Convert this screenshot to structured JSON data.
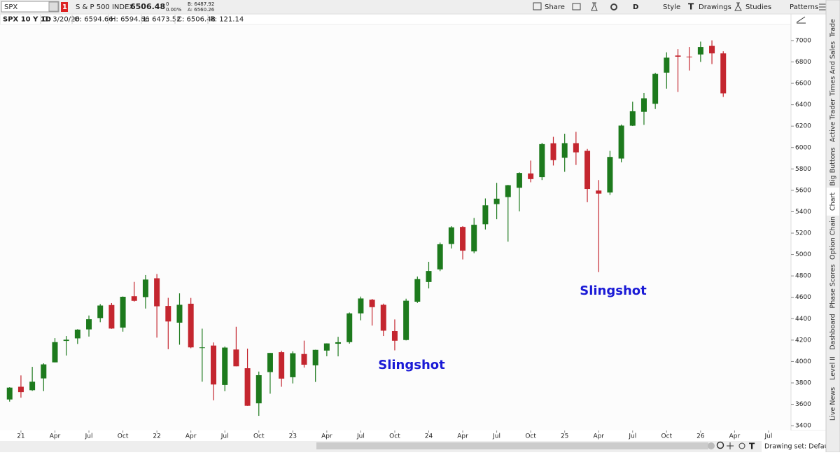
{
  "toolbar": {
    "symbol": "SPX",
    "alert_count": "1",
    "description": "S & P 500 INDEX",
    "last": "6506.48",
    "change": "0",
    "change_pct": "0.00%",
    "bid": "B: 6487.92",
    "ask": "A: 6560.26",
    "share": "Share",
    "period": "D",
    "style": "Style",
    "drawings": "Drawings",
    "studies": "Studies",
    "patterns": "Patterns"
  },
  "info_bar": [
    "SPX 10 Y 1D",
    "D: 3/20/26",
    "O: 6594.66",
    "H: 6594.66",
    "L: 6473.52",
    "C: 6506.48",
    "R: 121.14"
  ],
  "chart_data": {
    "type": "candlestick",
    "up_color": "#1d7a1d",
    "down_color": "#c4262f",
    "open": [
      3645,
      3764,
      3732,
      3842,
      3992,
      4192,
      4216,
      4300,
      4406,
      4528,
      4317,
      4610,
      4602,
      4778,
      4519,
      4363,
      4540,
      4131,
      4149,
      3781,
      4112,
      3937,
      3609,
      3901,
      4087,
      3853,
      4070,
      3964,
      4102,
      4166,
      4181,
      4450,
      4578,
      4530,
      4284,
      4201,
      4559,
      4743,
      4861,
      5098,
      5258,
      5029,
      5283,
      5471,
      5537,
      5624,
      5758,
      5723,
      6040,
      5904,
      6041,
      5969,
      5598,
      5580,
      5897,
      6204,
      6334,
      6409,
      6700,
      6860,
      6850,
      6870,
      6950,
      6880
    ],
    "high": [
      3760,
      3870,
      3950,
      3983,
      4218,
      4238,
      4302,
      4430,
      4537,
      4546,
      4608,
      4744,
      4808,
      4818,
      4595,
      4637,
      4594,
      4307,
      4178,
      4140,
      4325,
      4120,
      3906,
      4080,
      4101,
      4095,
      4195,
      4110,
      4170,
      4231,
      4458,
      4607,
      4585,
      4541,
      4393,
      4587,
      4794,
      4932,
      5112,
      5265,
      5265,
      5342,
      5524,
      5670,
      5651,
      5768,
      5878,
      6044,
      6100,
      6129,
      6147,
      5987,
      5696,
      5969,
      6215,
      6428,
      6509,
      6699,
      6890,
      6920,
      6940,
      6990,
      7002,
      6900
    ],
    "low": [
      3625,
      3662,
      3725,
      3723,
      3992,
      4056,
      4164,
      4233,
      4367,
      4305,
      4279,
      4560,
      4495,
      4223,
      4115,
      4157,
      4124,
      3811,
      3637,
      3722,
      3955,
      3585,
      3492,
      3699,
      3764,
      3795,
      3943,
      3809,
      4049,
      4048,
      4167,
      4385,
      4336,
      4238,
      4104,
      4197,
      4547,
      4683,
      4845,
      5056,
      4954,
      5012,
      5234,
      5330,
      5120,
      5403,
      5675,
      5696,
      5832,
      5773,
      5837,
      5489,
      4835,
      5557,
      5862,
      6201,
      6212,
      6360,
      6550,
      6520,
      6720,
      6800,
      6780,
      6473
    ],
    "close": [
      3756,
      3714,
      3811,
      3973,
      4181,
      4204,
      4298,
      4395,
      4523,
      4308,
      4605,
      4567,
      4766,
      4516,
      4374,
      4530,
      4132,
      4132,
      3785,
      4130,
      3955,
      3586,
      3872,
      4080,
      3840,
      4077,
      3970,
      4109,
      4169,
      4180,
      4450,
      4589,
      4508,
      4288,
      4194,
      4568,
      4770,
      4846,
      5096,
      5254,
      5036,
      5278,
      5460,
      5522,
      5648,
      5762,
      5705,
      6032,
      5882,
      6041,
      5955,
      5612,
      5569,
      5912,
      6205,
      6339,
      6460,
      6688,
      6840,
      6849,
      6845,
      6940,
      6880,
      6506
    ],
    "xlim": [
      -0.85,
      68.98
    ],
    "xticks": [
      {
        "value": 1,
        "label": "21"
      },
      {
        "value": 4,
        "label": "Apr"
      },
      {
        "value": 7,
        "label": "Jul"
      },
      {
        "value": 10,
        "label": "Oct"
      },
      {
        "value": 13,
        "label": "22"
      },
      {
        "value": 16,
        "label": "Apr"
      },
      {
        "value": 19,
        "label": "Jul"
      },
      {
        "value": 22,
        "label": "Oct"
      },
      {
        "value": 25,
        "label": "23"
      },
      {
        "value": 28,
        "label": "Apr"
      },
      {
        "value": 31,
        "label": "Jul"
      },
      {
        "value": 34,
        "label": "Oct"
      },
      {
        "value": 37,
        "label": "24"
      },
      {
        "value": 40,
        "label": "Apr"
      },
      {
        "value": 43,
        "label": "Jul"
      },
      {
        "value": 46,
        "label": "Oct"
      },
      {
        "value": 49,
        "label": "25"
      },
      {
        "value": 52,
        "label": "Apr"
      },
      {
        "value": 55,
        "label": "Jul"
      },
      {
        "value": 58,
        "label": "Oct"
      },
      {
        "value": 61,
        "label": "26"
      },
      {
        "value": 64,
        "label": "Apr"
      },
      {
        "value": 67,
        "label": "Jul"
      }
    ],
    "ylim": [
      3355,
      7150
    ],
    "yticks": [
      3400,
      3600,
      3800,
      4000,
      4200,
      4400,
      4600,
      4800,
      5000,
      5200,
      5400,
      5600,
      5800,
      6000,
      6200,
      6400,
      6600,
      6800,
      7000
    ],
    "annotations": [
      "Slingshot",
      "Slingshot"
    ],
    "annotation_color": "#1a1ad6"
  },
  "side_tabs": [
    "Trade",
    "Times And Sales",
    "Active Trader",
    "Big Buttons",
    "Chart",
    "Option Chain",
    "Phase Scores",
    "Dashboard",
    "Level II",
    "Live News"
  ],
  "status": "Drawing set: Default"
}
